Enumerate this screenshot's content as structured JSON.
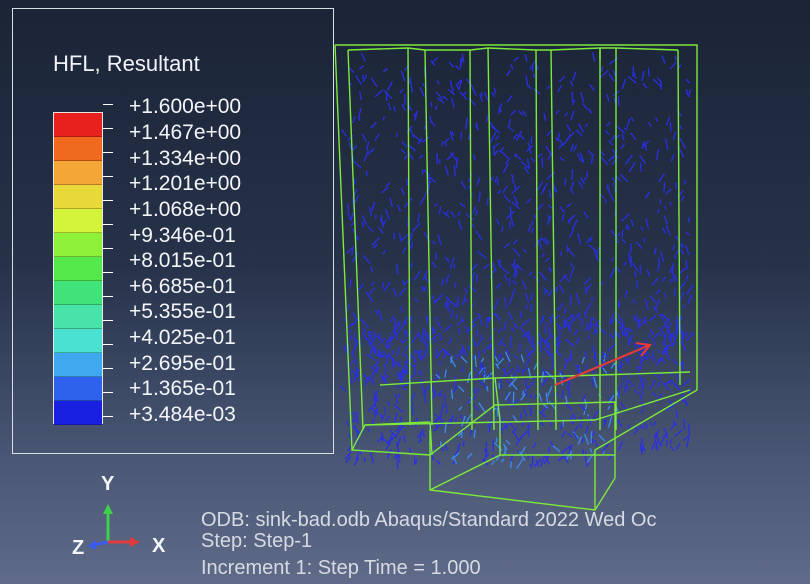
{
  "legend": {
    "title": "HFL, Resultant",
    "entries": [
      {
        "value": "+1.600e+00",
        "color": "#e8211e"
      },
      {
        "value": "+1.467e+00",
        "color": "#ef6a1f"
      },
      {
        "value": "+1.334e+00",
        "color": "#f4a637"
      },
      {
        "value": "+1.201e+00",
        "color": "#e8d83a"
      },
      {
        "value": "+1.068e+00",
        "color": "#d4f43a"
      },
      {
        "value": "+9.346e-01",
        "color": "#8ff03a"
      },
      {
        "value": "+8.015e-01",
        "color": "#55e84a"
      },
      {
        "value": "+6.685e-01",
        "color": "#3fe37a"
      },
      {
        "value": "+5.355e-01",
        "color": "#48e3a9"
      },
      {
        "value": "+4.025e-01",
        "color": "#4ae0d2"
      },
      {
        "value": "+2.695e-01",
        "color": "#3fa9f0"
      },
      {
        "value": "+1.365e-01",
        "color": "#2f62ec"
      },
      {
        "value": "+3.484e-03",
        "color": "#1a20e0"
      }
    ]
  },
  "triad": {
    "y_label": "Y",
    "x_label": "X",
    "z_label": "Z"
  },
  "info": {
    "odb_line": "ODB: sink-bad.odb    Abaqus/Standard 2022    Wed Oc",
    "step_line": "Step: Step-1",
    "increment_line": "Increment      1: Step Time =    1.000"
  },
  "colors": {
    "mesh_edges": "#7dea3a",
    "vector_low": "#2a2fe6",
    "vector_mid": "#3b8cf0",
    "vector_high": "#e83a3a"
  }
}
